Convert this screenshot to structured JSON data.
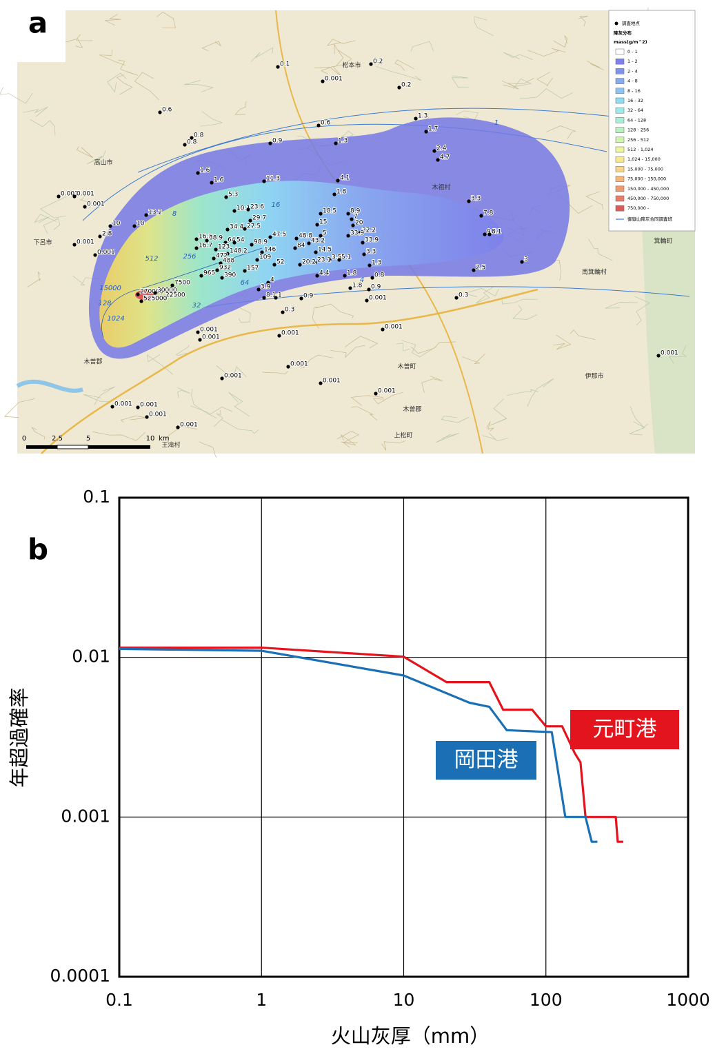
{
  "panel_a": {
    "label": "a",
    "legend": {
      "point_label": "調査地点",
      "title": "降灰分布",
      "unit": "mass(g/m^2)",
      "items": [
        {
          "label": "0 - 1",
          "color": "#ffffff"
        },
        {
          "label": "1 - 2",
          "color": "#7d80ea"
        },
        {
          "label": "2 - 4",
          "color": "#8093ec"
        },
        {
          "label": "4 - 8",
          "color": "#86acee"
        },
        {
          "label": "8 - 16",
          "color": "#8cc5f2"
        },
        {
          "label": "16 - 32",
          "color": "#8fdcf5"
        },
        {
          "label": "32 - 64",
          "color": "#98ecec"
        },
        {
          "label": "64 - 128",
          "color": "#a6f0d8"
        },
        {
          "label": "128 - 256",
          "color": "#b8f2c0"
        },
        {
          "label": "256 - 512",
          "color": "#d0f5a8"
        },
        {
          "label": "512 - 1,024",
          "color": "#eef59a"
        },
        {
          "label": "1,024 - 15,000",
          "color": "#f8e890"
        },
        {
          "label": "15,000 - 75,000",
          "color": "#f8d488"
        },
        {
          "label": "75,000 - 150,000",
          "color": "#f5b87c"
        },
        {
          "label": "150,000 - 450,000",
          "color": "#f09a70"
        },
        {
          "label": "450,000 - 750,000",
          "color": "#ea7a68"
        },
        {
          "label": "750,000 -",
          "color": "#e05a5a"
        }
      ],
      "line_label": "御嶽山降灰合同調査班",
      "line_color": "#3a7bd5"
    },
    "point_labels": [
      "0.1",
      "0.001",
      "0.2",
      "0.2",
      "0.6",
      "0.8",
      "0.8",
      "0.9",
      "0.6",
      "1.3",
      "1.3",
      "1.7",
      "2.4",
      "4.7",
      "1.6",
      "1.6",
      "11.3",
      "4.1",
      "1.8",
      "3.3",
      "7.8",
      "9.6",
      "8.1",
      "0.001",
      "0.001",
      "0.001",
      "0.001",
      "0.001",
      "2.8",
      "10",
      "10",
      "13.2",
      "5.3",
      "10.1",
      "23.6",
      "29.7",
      "34.4",
      "27.5",
      "16.8",
      "16.7",
      "38.9",
      "64",
      "54",
      "123",
      "148.2",
      "98.9",
      "146",
      "47.5",
      "48.8",
      "84",
      "18.5",
      "15",
      "5",
      "43.2",
      "8.9",
      "7",
      "20",
      "22.2",
      "33.9",
      "33.9",
      "14.5",
      "3.3",
      "3.5",
      "5.1",
      "23.1",
      "20.2",
      "1.3",
      "472",
      "488",
      "932",
      "965",
      "390",
      "157",
      "109",
      "52",
      "4.4",
      "1.8",
      "0.8",
      "4",
      "3.9",
      "1.8",
      "0.9",
      "8.1",
      "1",
      "0.9",
      "0.001",
      "0.3",
      "2.5",
      "3",
      "0.3",
      "0.001",
      "0.001",
      "0.001",
      "0.001",
      "0.001",
      "0.001",
      "0.001",
      "0.001",
      "0.001",
      "0.001",
      "0.001",
      "0.001",
      "0.001",
      "270000",
      "30000",
      "7500",
      "22500",
      "525000"
    ],
    "contour_labels": [
      "512",
      "256",
      "64",
      "32",
      "16",
      "8",
      "4",
      "1",
      "128",
      "1024",
      "15000"
    ],
    "place_names": [
      "高山市",
      "松本市",
      "木曽町",
      "木祖村",
      "南箕輪村",
      "箕輪町",
      "伊那市",
      "木曽郡",
      "王滝村",
      "上松町",
      "木曽郡",
      "下呂市"
    ],
    "scale_labels": [
      "0",
      "2.5",
      "5",
      "10",
      "km"
    ]
  },
  "chart_data": {
    "type": "line",
    "panel_label": "b",
    "y_label": "年超過確率",
    "x_label": "火山灰厚（mm）",
    "xlog": true,
    "ylog": true,
    "grid": true,
    "xlim": [
      0.1,
      1000
    ],
    "xticks": [
      0.1,
      1,
      10,
      100,
      1000
    ],
    "ylim": [
      0.0001,
      0.1
    ],
    "yticks": [
      0.0001,
      0.001,
      0.01,
      0.1
    ],
    "series": [
      {
        "name": "元町港",
        "color": "#e3141d",
        "x": [
          0.1,
          1,
          10,
          20,
          40,
          50,
          80,
          100,
          130,
          160,
          175,
          190,
          310,
          320,
          350
        ],
        "values": [
          0.0115,
          0.0115,
          0.0101,
          0.007,
          0.007,
          0.0047,
          0.0047,
          0.0037,
          0.0037,
          0.0025,
          0.0022,
          0.001,
          0.001,
          0.0007,
          0.0007
        ]
      },
      {
        "name": "岡田港",
        "color": "#1a6fb5",
        "x": [
          0.1,
          1,
          10,
          29,
          40,
          53,
          110,
          137,
          190,
          210,
          230
        ],
        "values": [
          0.0113,
          0.011,
          0.0077,
          0.0052,
          0.0049,
          0.0035,
          0.0034,
          0.001,
          0.001,
          0.0007,
          0.0007
        ]
      }
    ]
  }
}
